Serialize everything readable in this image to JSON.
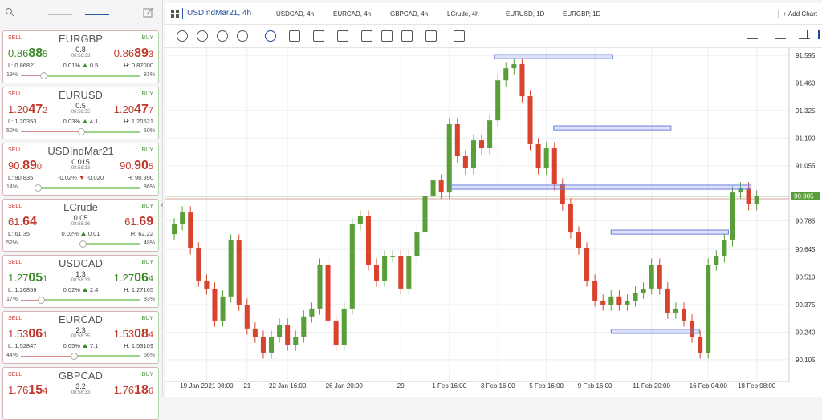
{
  "watchlist": [
    {
      "name": "EURGBP",
      "sell_label": "SELL",
      "buy_label": "BUY",
      "sell": [
        "0.86",
        "88",
        "5"
      ],
      "buy": [
        "0.86",
        "89",
        "3"
      ],
      "sell_color": "#3a8a2a",
      "buy_color": "#c0392b",
      "spread": "0.8",
      "time": "08:58:33",
      "low": "L: 0.86821",
      "change": "0.01%",
      "direction": "up",
      "change_pips": "0.5",
      "high": "H: 0.87000",
      "sell_pct": {
        "value": 19,
        "label": "19%"
      },
      "buy_pct": {
        "value": 81,
        "label": "81%"
      }
    },
    {
      "name": "EURUSD",
      "sell_label": "SELL",
      "buy_label": "BUY",
      "sell": [
        "1.20",
        "47",
        "2"
      ],
      "buy": [
        "1.20",
        "47",
        "7"
      ],
      "sell_color": "#c0392b",
      "buy_color": "#c0392b",
      "spread": "0.5",
      "time": "08:58:35",
      "low": "L: 1.20353",
      "change": "0.03%",
      "direction": "up",
      "change_pips": "4.1",
      "high": "H: 1.20521",
      "sell_pct": {
        "value": 50,
        "label": "50%"
      },
      "buy_pct": {
        "value": 50,
        "label": "50%"
      }
    },
    {
      "name": "USDIndMar21",
      "sell_label": "SELL",
      "buy_label": "BUY",
      "sell": [
        "90.",
        "89",
        "0"
      ],
      "buy": [
        "90.",
        "90",
        "5"
      ],
      "sell_color": "#c0392b",
      "buy_color": "#c0392b",
      "spread": "0.015",
      "time": "08:58:33",
      "low": "L: 90.835",
      "change": "-0.02%",
      "direction": "down",
      "change_pips": "-0.020",
      "high": "H: 90.990",
      "sell_pct": {
        "value": 14,
        "label": "14%"
      },
      "buy_pct": {
        "value": 86,
        "label": "86%"
      }
    },
    {
      "name": "LCrude",
      "sell_label": "SELL",
      "buy_label": "BUY",
      "sell": [
        "61.",
        "64"
      ],
      "buy": [
        "61.",
        "69"
      ],
      "sell_color": "#c0392b",
      "buy_color": "#c0392b",
      "spread": "0.05",
      "time": "08:58:36",
      "low": "L: 61.35",
      "change": "0.02%",
      "direction": "up",
      "change_pips": "0.01",
      "high": "H: 62.22",
      "sell_pct": {
        "value": 52,
        "label": "52%"
      },
      "buy_pct": {
        "value": 48,
        "label": "48%"
      }
    },
    {
      "name": "USDCAD",
      "sell_label": "SELL",
      "buy_label": "BUY",
      "sell": [
        "1.27",
        "05",
        "1"
      ],
      "buy": [
        "1.27",
        "06",
        "4"
      ],
      "sell_color": "#3a8a2a",
      "buy_color": "#3a8a2a",
      "spread": "1.3",
      "time": "08:58:33",
      "low": "L: 1.26859",
      "change": "0.02%",
      "direction": "up",
      "change_pips": "2.4",
      "high": "H: 1.27165",
      "sell_pct": {
        "value": 17,
        "label": "17%"
      },
      "buy_pct": {
        "value": 83,
        "label": "83%"
      }
    },
    {
      "name": "EURCAD",
      "sell_label": "SELL",
      "buy_label": "BUY",
      "sell": [
        "1.53",
        "06",
        "1"
      ],
      "buy": [
        "1.53",
        "08",
        "4"
      ],
      "sell_color": "#c0392b",
      "buy_color": "#c0392b",
      "spread": "2.3",
      "time": "08:58:35",
      "low": "L: 1.52847",
      "change": "0.05%",
      "direction": "up",
      "change_pips": "7.1",
      "high": "H: 1.53109",
      "sell_pct": {
        "value": 44,
        "label": "44%"
      },
      "buy_pct": {
        "value": 56,
        "label": "56%"
      }
    },
    {
      "name": "GBPCAD",
      "sell_label": "SELL",
      "buy_label": "BUY",
      "sell": [
        "1.76",
        "15",
        "4"
      ],
      "buy": [
        "1.76",
        "18",
        "6"
      ],
      "sell_color": "#c0392b",
      "buy_color": "#c0392b",
      "spread": "3.2",
      "time": "08:58:33"
    }
  ],
  "tabs": [
    "USDIndMar21, 4h",
    "USDCAD, 4h",
    "EURCAD, 4h",
    "GBPCAD, 4h",
    "LCrude, 4h",
    "EURUSD, 1D",
    "EURGBP, 1D"
  ],
  "add_chart": "+ Add Chart",
  "chart_data": {
    "type": "candlestick",
    "up_color": "#5a9e3a",
    "down_color": "#d8432e",
    "open": [
      90.72,
      90.768,
      90.826,
      90.65,
      90.493,
      90.454,
      90.297,
      90.415,
      90.689,
      90.375,
      90.258,
      90.218,
      90.14,
      90.218,
      90.277,
      90.179,
      90.218,
      90.317,
      90.356,
      90.571,
      90.297,
      90.179,
      90.356,
      90.768,
      90.807,
      90.571,
      90.493,
      90.611,
      90.611,
      90.454,
      90.611,
      90.728,
      90.905,
      90.983,
      90.924,
      91.258,
      91.101,
      91.042,
      91.179,
      91.14,
      91.277,
      91.473,
      91.532,
      91.552,
      91.395,
      91.16,
      91.042,
      91.14,
      90.964,
      90.866,
      90.728,
      90.65,
      90.493,
      90.395,
      90.375,
      90.415,
      90.375,
      90.395,
      90.434,
      90.454,
      90.571,
      90.454,
      90.336,
      90.356,
      90.297,
      90.218,
      90.14,
      90.571,
      90.611,
      90.689,
      90.924,
      90.944,
      90.866
    ],
    "high": [
      90.798,
      90.856,
      90.856,
      90.68,
      90.523,
      90.484,
      90.445,
      90.719,
      90.719,
      90.405,
      90.288,
      90.248,
      90.248,
      90.307,
      90.307,
      90.248,
      90.347,
      90.386,
      90.601,
      90.601,
      90.327,
      90.386,
      90.798,
      90.837,
      90.837,
      90.601,
      90.641,
      90.641,
      90.641,
      90.641,
      90.758,
      90.935,
      91.013,
      91.013,
      91.288,
      91.288,
      91.131,
      91.209,
      91.209,
      91.307,
      91.503,
      91.562,
      91.582,
      91.582,
      91.425,
      91.19,
      91.17,
      91.17,
      90.994,
      90.896,
      90.758,
      90.68,
      90.523,
      90.425,
      90.445,
      90.445,
      90.425,
      90.464,
      90.484,
      90.601,
      90.601,
      90.484,
      90.386,
      90.386,
      90.327,
      90.248,
      90.601,
      90.641,
      90.719,
      90.954,
      90.974,
      90.974,
      90.935
    ],
    "low": [
      90.69,
      90.738,
      90.62,
      90.463,
      90.424,
      90.267,
      90.267,
      90.385,
      90.345,
      90.228,
      90.188,
      90.11,
      90.11,
      90.188,
      90.149,
      90.149,
      90.188,
      90.287,
      90.326,
      90.267,
      90.149,
      90.149,
      90.326,
      90.738,
      90.541,
      90.463,
      90.463,
      90.581,
      90.424,
      90.424,
      90.581,
      90.698,
      90.875,
      90.894,
      90.894,
      91.071,
      91.012,
      91.012,
      91.11,
      91.11,
      91.247,
      91.443,
      91.502,
      91.365,
      91.13,
      91.012,
      91.012,
      90.934,
      90.836,
      90.698,
      90.62,
      90.463,
      90.365,
      90.345,
      90.345,
      90.345,
      90.345,
      90.365,
      90.404,
      90.424,
      90.424,
      90.306,
      90.306,
      90.267,
      90.188,
      90.11,
      90.11,
      90.541,
      90.581,
      90.659,
      90.894,
      90.836,
      90.836
    ],
    "close": [
      90.768,
      90.826,
      90.65,
      90.493,
      90.454,
      90.297,
      90.415,
      90.689,
      90.375,
      90.258,
      90.218,
      90.14,
      90.218,
      90.277,
      90.179,
      90.218,
      90.317,
      90.356,
      90.571,
      90.297,
      90.179,
      90.356,
      90.768,
      90.807,
      90.571,
      90.493,
      90.611,
      90.611,
      90.454,
      90.611,
      90.728,
      90.905,
      90.983,
      90.924,
      91.258,
      91.101,
      91.042,
      91.179,
      91.14,
      91.277,
      91.473,
      91.532,
      91.552,
      91.395,
      91.16,
      91.042,
      91.14,
      90.964,
      90.866,
      90.728,
      90.65,
      90.493,
      90.395,
      90.375,
      90.415,
      90.375,
      90.395,
      90.434,
      90.454,
      90.571,
      90.454,
      90.336,
      90.356,
      90.297,
      90.218,
      90.14,
      90.571,
      90.611,
      90.689,
      90.924,
      90.944,
      90.866,
      90.905
    ],
    "ylim": [
      90.022,
      91.67
    ],
    "yticks": [
      91.595,
      {
        "value": 91.46,
        "label": "91.460"
      },
      91.325,
      {
        "value": 91.19,
        "label": "91.190"
      },
      91.055,
      90.785,
      90.645,
      {
        "value": 90.51,
        "label": "90.510"
      },
      90.375,
      {
        "value": 90.24,
        "label": "90.240"
      },
      90.105
    ],
    "xlim": [
      -1,
      76
    ],
    "xticks": [
      {
        "value": 4,
        "label": "19 Jan 2021 08:00"
      },
      {
        "value": 9,
        "label": "21"
      },
      {
        "value": 14,
        "label": "22 Jan 16:00"
      },
      {
        "value": 21,
        "label": "26 Jan 20:00"
      },
      {
        "value": 28,
        "label": "29"
      },
      {
        "value": 34,
        "label": "1 Feb 16:00"
      },
      {
        "value": 40,
        "label": "3 Feb 16:00"
      },
      {
        "value": 46,
        "label": "5 Feb 16:00"
      },
      {
        "value": 52,
        "label": "9 Feb 16:00"
      },
      {
        "value": 59,
        "label": "11 Feb 20:00"
      },
      {
        "value": 66,
        "label": "16 Feb 04:00"
      },
      {
        "value": 72,
        "label": "18 Feb 08:00"
      }
    ],
    "last_price": {
      "value": 90.905,
      "label": "90.905"
    },
    "grid": true,
    "drawings": [
      {
        "start": 39.6,
        "end": 54.2,
        "top": 91.599,
        "bottom": 91.579
      },
      {
        "start": 46.9,
        "end": 61.4,
        "top": 91.25,
        "bottom": 91.23
      },
      {
        "start": 34,
        "end": 71.3,
        "top": 90.96,
        "bottom": 90.94
      },
      {
        "start": 54,
        "end": 68.5,
        "top": 90.74,
        "bottom": 90.72
      },
      {
        "start": 54,
        "end": 64.9,
        "top": 90.254,
        "bottom": 90.234
      }
    ]
  }
}
